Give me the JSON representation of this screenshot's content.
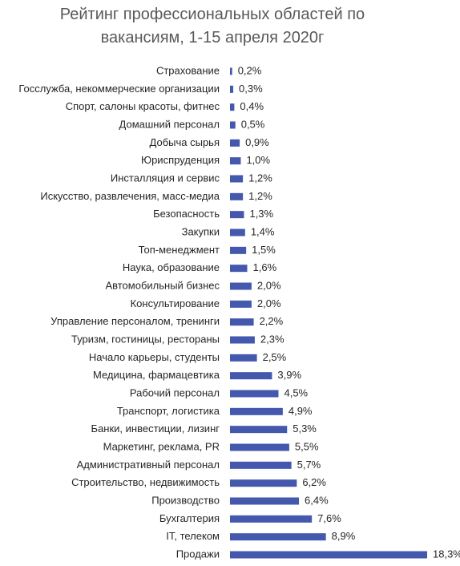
{
  "chart_data": {
    "type": "bar",
    "orientation": "horizontal",
    "title": "Рейтинг профессиональных областей по вакансиям, 1-15 апреля 2020г",
    "categories": [
      "Страхование",
      "Госслужба, некоммерческие организации",
      "Спорт, салоны красоты, фитнес",
      "Домашний персонал",
      "Добыча сырья",
      "Юриспруденция",
      "Инсталляция и сервис",
      "Искусство, развлечения, масс-медиа",
      "Безопасность",
      "Закупки",
      "Топ-менеджмент",
      "Наука, образование",
      "Автомобильный бизнес",
      "Консультирование",
      "Управление персоналом, тренинги",
      "Туризм, гостиницы, рестораны",
      "Начало карьеры, студенты",
      "Медицина, фармацевтика",
      "Рабочий персонал",
      "Транспорт, логистика",
      "Банки, инвестиции, лизинг",
      "Маркетинг, реклама, PR",
      "Административный персонал",
      "Строительство, недвижимость",
      "Производство",
      "Бухгалтерия",
      "IT, телеком",
      "Продажи"
    ],
    "values": [
      0.2,
      0.3,
      0.4,
      0.5,
      0.9,
      1.0,
      1.2,
      1.2,
      1.3,
      1.4,
      1.5,
      1.6,
      2.0,
      2.0,
      2.2,
      2.3,
      2.5,
      3.9,
      4.5,
      4.9,
      5.3,
      5.5,
      5.7,
      6.2,
      6.4,
      7.6,
      8.9,
      18.3
    ],
    "value_labels": [
      "0,2%",
      "0,3%",
      "0,4%",
      "0,5%",
      "0,9%",
      "1,0%",
      "1,2%",
      "1,2%",
      "1,3%",
      "1,4%",
      "1,5%",
      "1,6%",
      "2,0%",
      "2,0%",
      "2,2%",
      "2,3%",
      "2,5%",
      "3,9%",
      "4,5%",
      "4,9%",
      "5,3%",
      "5,5%",
      "5,7%",
      "6,2%",
      "6,4%",
      "7,6%",
      "8,9%",
      "18,3%"
    ],
    "color": "#4459ad"
  }
}
